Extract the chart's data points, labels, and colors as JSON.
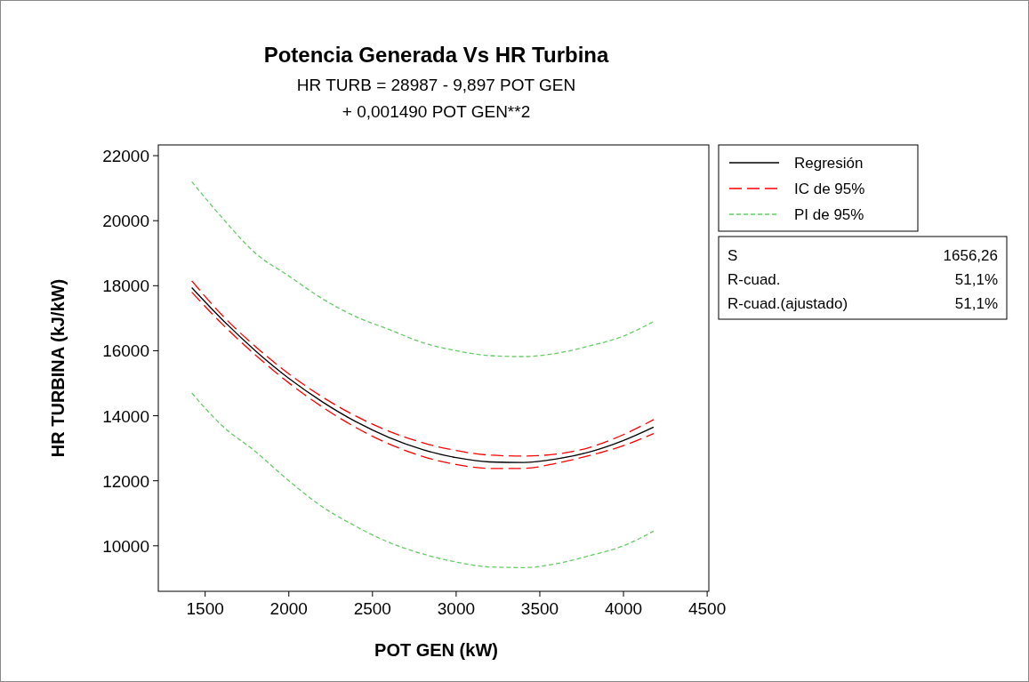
{
  "chart_data": {
    "type": "line",
    "title": "Potencia Generada Vs HR Turbina",
    "subtitle": "HR TURB =  28987 - 9,897 POT GEN\n+ 0,001490 POT GEN**2",
    "xlabel": "POT GEN (kW)",
    "ylabel": "HR TURBINA (kJ/kW)",
    "x": [
      1420,
      1600,
      1800,
      2000,
      2200,
      2400,
      2600,
      2800,
      3000,
      3200,
      3400,
      3600,
      3800,
      4000,
      4180
    ],
    "series": [
      {
        "name": "Regresión",
        "color": "#000000",
        "line_style": "solid",
        "values": [
          17940,
          16970,
          16000,
          15150,
          14430,
          13820,
          13330,
          12960,
          12710,
          12580,
          12560,
          12670,
          12890,
          13240,
          13650
        ]
      },
      {
        "name": "IC de 95%",
        "color": "#ff0000",
        "line_style": "dashed",
        "values": [
          18150,
          17100,
          16130,
          15290,
          14580,
          13990,
          13520,
          13170,
          12930,
          12790,
          12760,
          12820,
          13030,
          13420,
          13880
        ]
      },
      {
        "color": "#ff0000",
        "line_style": "dashed",
        "values": [
          17800,
          16830,
          15870,
          15010,
          14270,
          13640,
          13130,
          12750,
          12500,
          12380,
          12380,
          12540,
          12780,
          13080,
          13450
        ]
      },
      {
        "name": "PI de 95%",
        "color": "#66cc66",
        "line_style": "dotted",
        "values": [
          21200,
          20100,
          19000,
          18300,
          17600,
          17050,
          16650,
          16250,
          16000,
          15850,
          15820,
          15920,
          16150,
          16450,
          16900
        ]
      },
      {
        "color": "#66cc66",
        "line_style": "dotted",
        "values": [
          14700,
          13700,
          12900,
          12000,
          11200,
          10600,
          10100,
          9750,
          9500,
          9350,
          9330,
          9450,
          9700,
          10000,
          10450
        ]
      }
    ],
    "xlim": [
      1220,
      4510
    ],
    "xticks": [
      1500,
      2000,
      2500,
      3000,
      3500,
      4000,
      4500
    ],
    "ylim": [
      8600,
      22330
    ],
    "yticks": [
      10000,
      12000,
      14000,
      16000,
      18000,
      20000,
      22000
    ],
    "legend": "right",
    "marker": "none",
    "annotations": [
      "S",
      "1656,26",
      "R-cuad.",
      "51,1%",
      "R-cuad.(ajustado)",
      "51,1%"
    ]
  }
}
